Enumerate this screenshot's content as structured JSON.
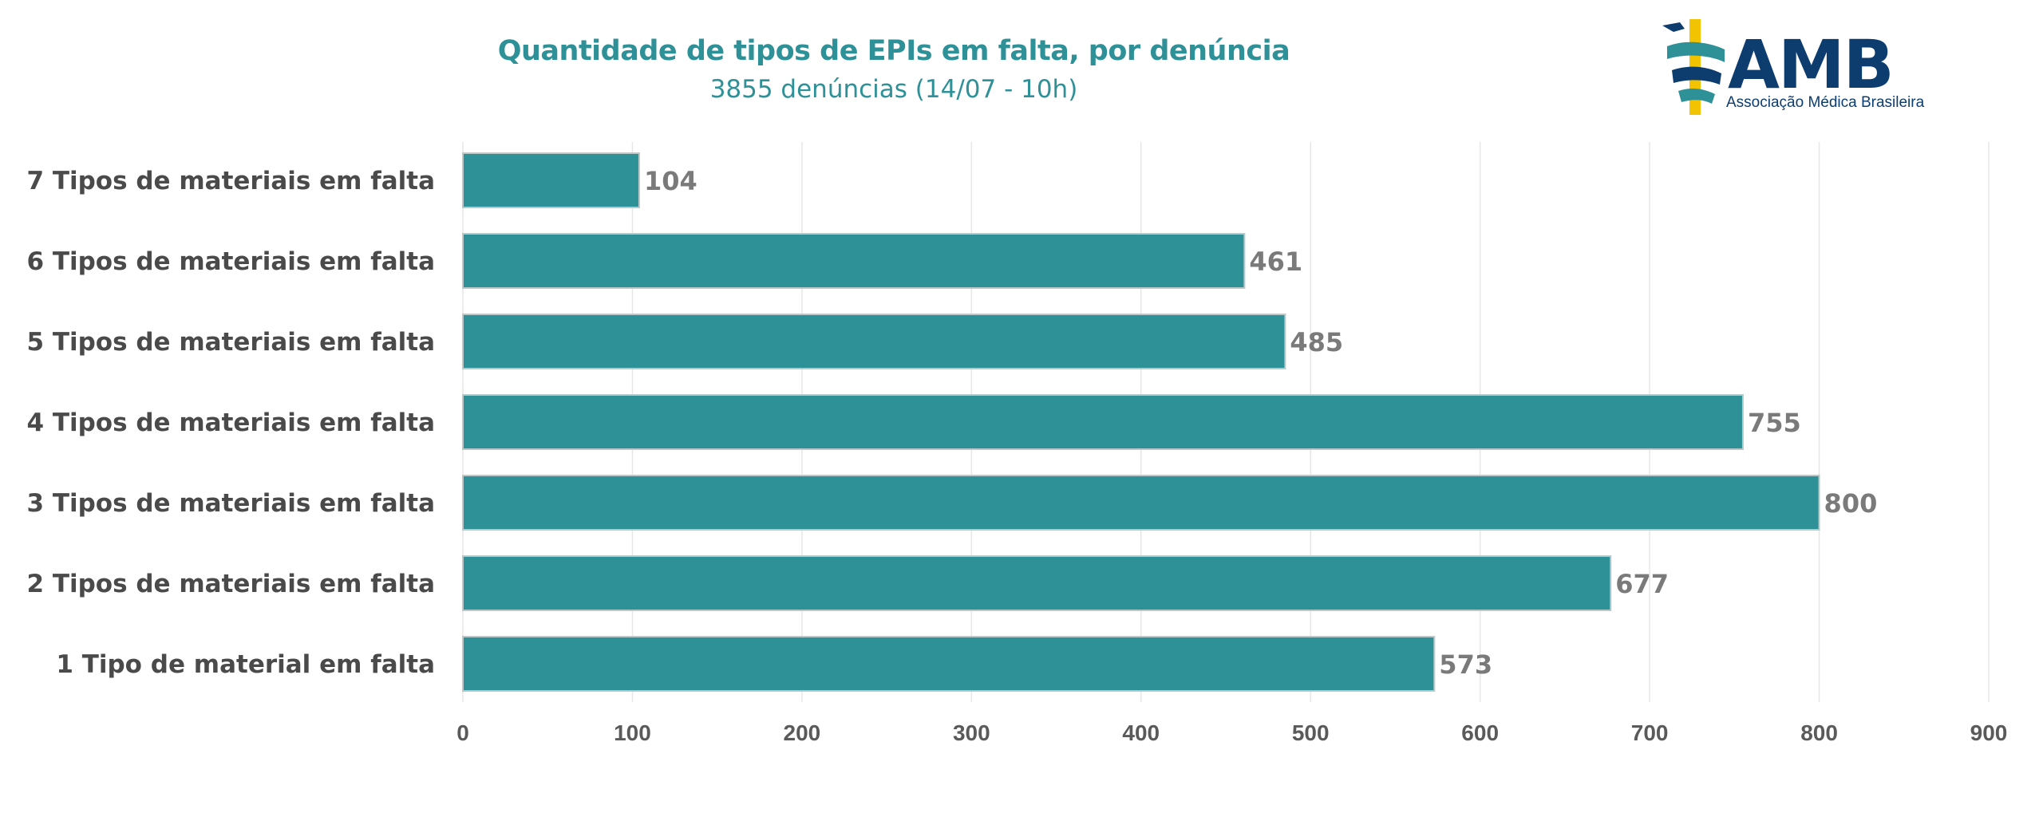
{
  "chart_data": {
    "type": "bar",
    "orientation": "horizontal",
    "title": "Quantidade de tipos de EPIs em falta, por denúncia",
    "subtitle": "3855 denúncias (14/07 - 10h)",
    "categories": [
      "7 Tipos de materiais em falta",
      "6 Tipos de materiais em falta",
      "5 Tipos de materiais em falta",
      "4 Tipos de materiais em falta",
      "3 Tipos de materiais em falta",
      "2 Tipos de materiais em falta",
      "1 Tipo de material em falta"
    ],
    "values": [
      104,
      461,
      485,
      755,
      800,
      677,
      573
    ],
    "xlim": [
      0,
      900
    ],
    "xticks": [
      0,
      100,
      200,
      300,
      400,
      500,
      600,
      700,
      800,
      900
    ],
    "grid": "vertical",
    "bar_color": "#2e9198",
    "legend": "none",
    "data_labels": true
  },
  "logo": {
    "text": "AMB",
    "subtext": "Associação Médica Brasileira",
    "primary_color": "#0d3d6e",
    "accent_color": "#f2c300",
    "ribbon_color": "#2e9198"
  }
}
